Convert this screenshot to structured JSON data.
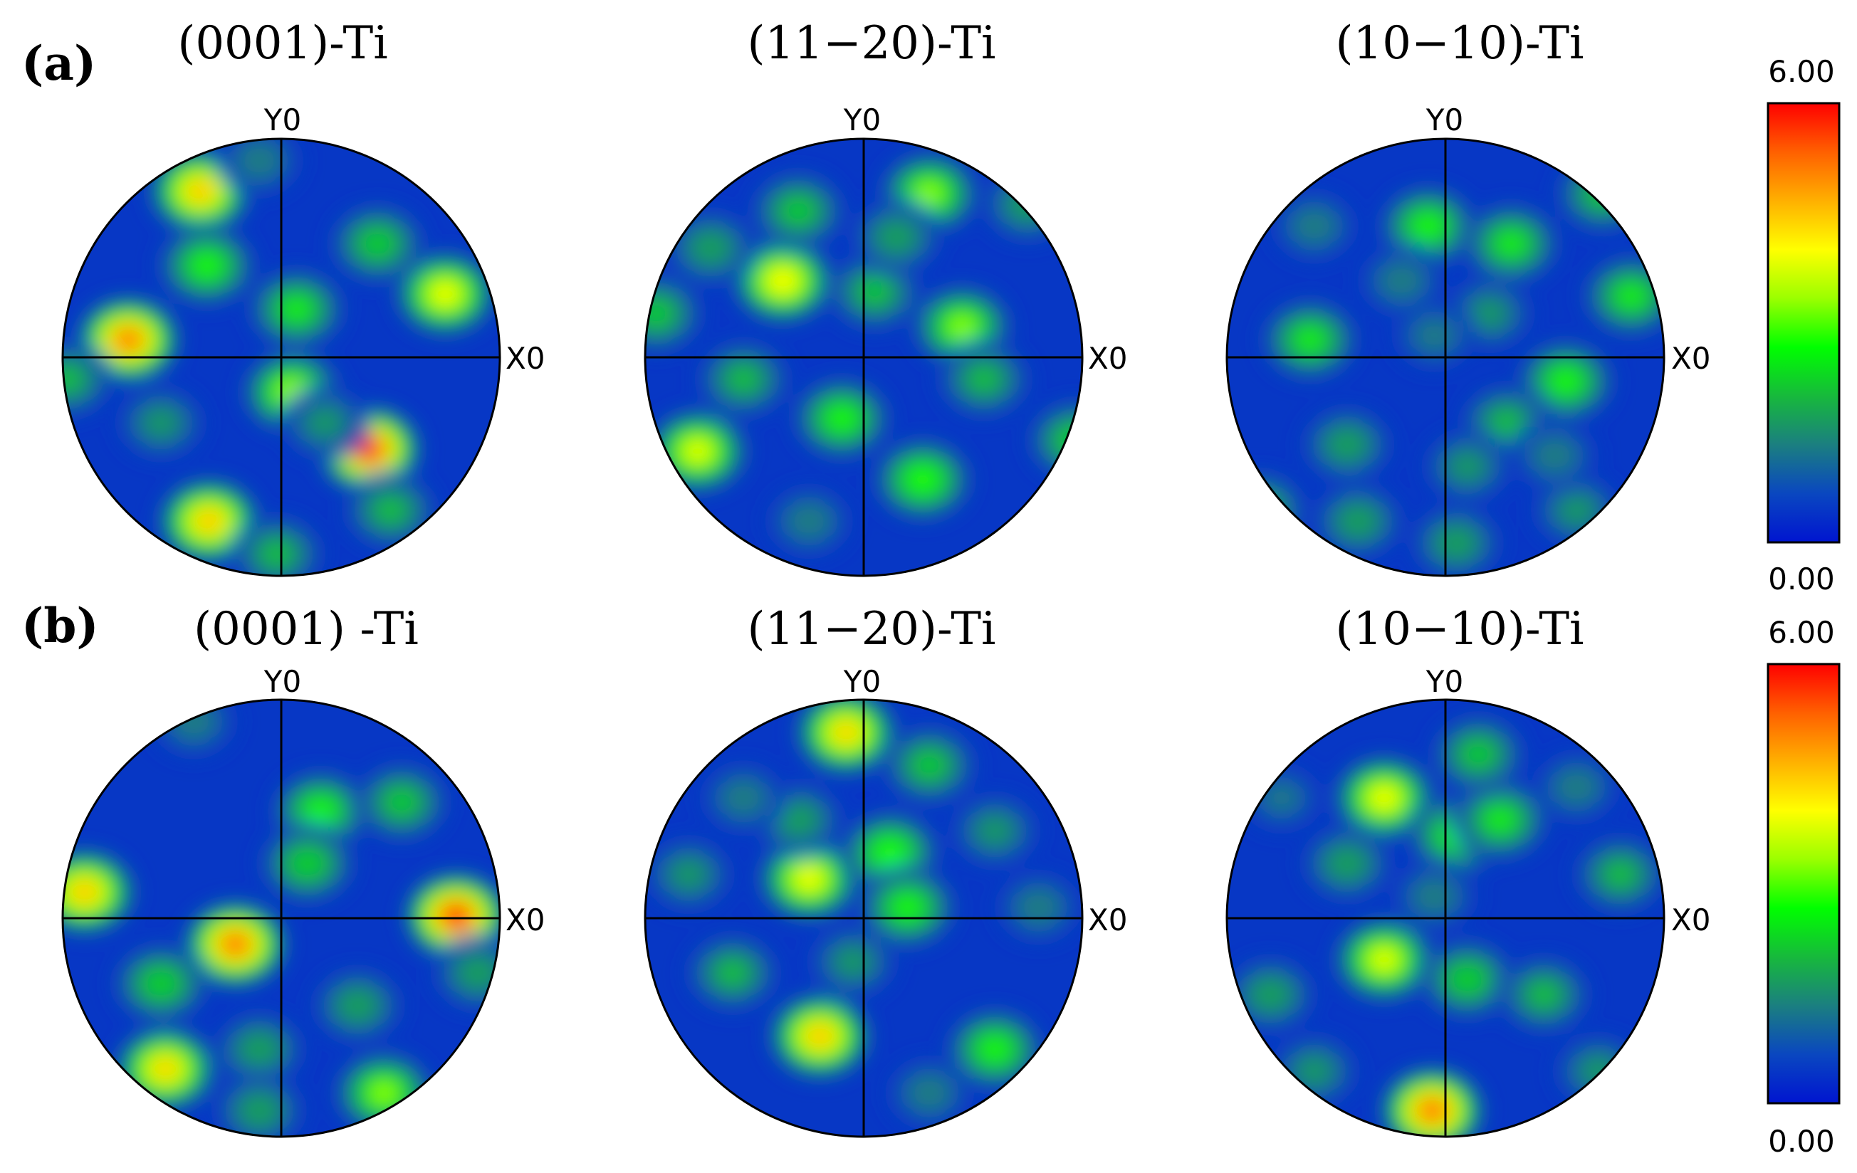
{
  "chart_data": {
    "type": "pole_figure_grid",
    "rows": [
      {
        "label": "(a)",
        "colorbar": {
          "max_label": "6.00",
          "min_label": "0.00",
          "min": 0,
          "max": 6
        },
        "figures": [
          {
            "title": "(0001)-Ti",
            "x_axis_label": "X0",
            "y_axis_label": "Y0",
            "peaks": [
              {
                "x": -0.37,
                "y": 0.76,
                "intensity": 4.8
              },
              {
                "x": -0.7,
                "y": 0.08,
                "intensity": 5.5
              },
              {
                "x": 0.75,
                "y": 0.29,
                "intensity": 4.2
              },
              {
                "x": 0.4,
                "y": -0.42,
                "intensity": 6.0
              },
              {
                "x": -0.33,
                "y": -0.75,
                "intensity": 4.8
              },
              {
                "x": 0.05,
                "y": -0.16,
                "intensity": 3.6
              },
              {
                "x": -0.34,
                "y": 0.42,
                "intensity": 3.0
              },
              {
                "x": 0.07,
                "y": 0.22,
                "intensity": 2.8
              },
              {
                "x": 0.44,
                "y": 0.52,
                "intensity": 2.5
              },
              {
                "x": -0.02,
                "y": -0.9,
                "intensity": 2.2
              },
              {
                "x": 0.5,
                "y": -0.7,
                "intensity": 2.2
              },
              {
                "x": -0.55,
                "y": -0.3,
                "intensity": 1.8
              },
              {
                "x": -0.98,
                "y": -0.1,
                "intensity": 2.2
              },
              {
                "x": -0.1,
                "y": 0.9,
                "intensity": 1.6
              },
              {
                "x": 0.2,
                "y": -0.3,
                "intensity": 1.8
              }
            ]
          },
          {
            "title": "(11−20)-Ti",
            "x_axis_label": "X0",
            "y_axis_label": "Y0",
            "peaks": [
              {
                "x": -0.37,
                "y": 0.35,
                "intensity": 4.4
              },
              {
                "x": -0.76,
                "y": -0.43,
                "intensity": 4.0
              },
              {
                "x": 0.45,
                "y": 0.14,
                "intensity": 3.4
              },
              {
                "x": 0.27,
                "y": -0.56,
                "intensity": 3.2
              },
              {
                "x": 0.3,
                "y": 0.75,
                "intensity": 3.4
              },
              {
                "x": -0.1,
                "y": -0.28,
                "intensity": 3.0
              },
              {
                "x": -0.3,
                "y": 0.67,
                "intensity": 2.4
              },
              {
                "x": -0.7,
                "y": 0.5,
                "intensity": 2.0
              },
              {
                "x": 0.75,
                "y": 0.7,
                "intensity": 2.0
              },
              {
                "x": -0.55,
                "y": -0.1,
                "intensity": 2.2
              },
              {
                "x": 0.97,
                "y": -0.38,
                "intensity": 2.6
              },
              {
                "x": -0.95,
                "y": 0.2,
                "intensity": 2.4
              },
              {
                "x": 0.05,
                "y": 0.3,
                "intensity": 2.3
              },
              {
                "x": 0.55,
                "y": -0.1,
                "intensity": 2.2
              },
              {
                "x": 0.15,
                "y": 0.55,
                "intensity": 2.0
              },
              {
                "x": -0.25,
                "y": -0.75,
                "intensity": 1.6
              }
            ]
          },
          {
            "title": "(10−10)-Ti",
            "x_axis_label": "X0",
            "y_axis_label": "Y0",
            "peaks": [
              {
                "x": -0.08,
                "y": 0.6,
                "intensity": 3.0
              },
              {
                "x": 0.3,
                "y": 0.52,
                "intensity": 2.8
              },
              {
                "x": 0.55,
                "y": -0.11,
                "intensity": 3.0
              },
              {
                "x": 0.85,
                "y": 0.28,
                "intensity": 2.8
              },
              {
                "x": -0.62,
                "y": 0.08,
                "intensity": 2.8
              },
              {
                "x": 0.72,
                "y": 0.75,
                "intensity": 2.4
              },
              {
                "x": -0.45,
                "y": -0.4,
                "intensity": 2.0
              },
              {
                "x": 0.28,
                "y": -0.3,
                "intensity": 2.2
              },
              {
                "x": -0.4,
                "y": -0.75,
                "intensity": 2.0
              },
              {
                "x": 0.05,
                "y": -0.85,
                "intensity": 2.0
              },
              {
                "x": 0.6,
                "y": -0.7,
                "intensity": 1.8
              },
              {
                "x": -0.85,
                "y": -0.7,
                "intensity": 2.3
              },
              {
                "x": 0.2,
                "y": 0.2,
                "intensity": 1.8
              },
              {
                "x": -0.2,
                "y": 0.35,
                "intensity": 1.6
              },
              {
                "x": -0.6,
                "y": 0.6,
                "intensity": 1.6
              },
              {
                "x": 0.1,
                "y": -0.5,
                "intensity": 1.8
              },
              {
                "x": 0.5,
                "y": -0.45,
                "intensity": 1.6
              },
              {
                "x": -0.05,
                "y": 0.1,
                "intensity": 1.5
              }
            ]
          }
        ]
      },
      {
        "label": "(b)",
        "colorbar": {
          "max_label": "6.00",
          "min_label": "0.00",
          "min": 0,
          "max": 6
        },
        "figures": [
          {
            "title": "(0001) -Ti",
            "x_axis_label": "X0",
            "y_axis_label": "Y0",
            "peaks": [
              {
                "x": 0.8,
                "y": 0.01,
                "intensity": 6.0
              },
              {
                "x": -0.21,
                "y": -0.12,
                "intensity": 5.6
              },
              {
                "x": -0.9,
                "y": 0.12,
                "intensity": 4.8
              },
              {
                "x": -0.53,
                "y": -0.69,
                "intensity": 4.6
              },
              {
                "x": 0.47,
                "y": -0.8,
                "intensity": 3.4
              },
              {
                "x": 0.18,
                "y": 0.49,
                "intensity": 3.0
              },
              {
                "x": 0.12,
                "y": 0.25,
                "intensity": 2.6
              },
              {
                "x": -0.55,
                "y": -0.3,
                "intensity": 2.6
              },
              {
                "x": 0.55,
                "y": 0.53,
                "intensity": 2.4
              },
              {
                "x": 0.35,
                "y": -0.4,
                "intensity": 2.0
              },
              {
                "x": -0.1,
                "y": -0.6,
                "intensity": 2.0
              },
              {
                "x": -0.1,
                "y": -0.88,
                "intensity": 2.0
              },
              {
                "x": -0.4,
                "y": 0.9,
                "intensity": 1.6
              },
              {
                "x": 0.9,
                "y": -0.25,
                "intensity": 2.0
              }
            ]
          },
          {
            "title": "(11−20)-Ti",
            "x_axis_label": "X0",
            "y_axis_label": "Y0",
            "peaks": [
              {
                "x": -0.08,
                "y": 0.85,
                "intensity": 4.6
              },
              {
                "x": -0.25,
                "y": 0.18,
                "intensity": 4.2
              },
              {
                "x": -0.2,
                "y": -0.54,
                "intensity": 4.8
              },
              {
                "x": 0.12,
                "y": 0.3,
                "intensity": 3.2
              },
              {
                "x": 0.2,
                "y": 0.05,
                "intensity": 3.0
              },
              {
                "x": 0.6,
                "y": -0.6,
                "intensity": 3.0
              },
              {
                "x": 0.3,
                "y": 0.7,
                "intensity": 2.4
              },
              {
                "x": -0.6,
                "y": -0.25,
                "intensity": 2.2
              },
              {
                "x": -0.3,
                "y": 0.45,
                "intensity": 2.0
              },
              {
                "x": 0.6,
                "y": 0.4,
                "intensity": 1.8
              },
              {
                "x": 0.8,
                "y": 0.05,
                "intensity": 1.6
              },
              {
                "x": -0.8,
                "y": 0.2,
                "intensity": 1.8
              },
              {
                "x": -0.05,
                "y": -0.2,
                "intensity": 1.8
              },
              {
                "x": 0.3,
                "y": -0.8,
                "intensity": 1.6
              },
              {
                "x": -0.55,
                "y": 0.55,
                "intensity": 1.6
              }
            ]
          },
          {
            "title": "(10−10)-Ti",
            "x_axis_label": "X0",
            "y_axis_label": "Y0",
            "peaks": [
              {
                "x": -0.06,
                "y": -0.88,
                "intensity": 5.6
              },
              {
                "x": -0.28,
                "y": 0.55,
                "intensity": 4.2
              },
              {
                "x": -0.28,
                "y": -0.19,
                "intensity": 4.0
              },
              {
                "x": 0.05,
                "y": 0.38,
                "intensity": 3.0
              },
              {
                "x": 0.25,
                "y": 0.45,
                "intensity": 2.8
              },
              {
                "x": 0.1,
                "y": -0.28,
                "intensity": 2.6
              },
              {
                "x": 0.15,
                "y": 0.75,
                "intensity": 2.4
              },
              {
                "x": 0.45,
                "y": -0.35,
                "intensity": 2.2
              },
              {
                "x": 0.8,
                "y": 0.2,
                "intensity": 2.2
              },
              {
                "x": -0.8,
                "y": -0.35,
                "intensity": 2.0
              },
              {
                "x": -0.45,
                "y": 0.25,
                "intensity": 2.0
              },
              {
                "x": -0.6,
                "y": -0.7,
                "intensity": 1.8
              },
              {
                "x": 0.7,
                "y": -0.7,
                "intensity": 1.8
              },
              {
                "x": 0.6,
                "y": 0.6,
                "intensity": 1.6
              },
              {
                "x": -0.05,
                "y": 0.1,
                "intensity": 1.6
              },
              {
                "x": -0.75,
                "y": 0.55,
                "intensity": 1.4
              }
            ]
          }
        ]
      }
    ],
    "colormap": [
      "#0015d0",
      "#0a47c0",
      "#1b7f80",
      "#17b93c",
      "#00ff00",
      "#9bff00",
      "#ffff00",
      "#ffb000",
      "#ff6000",
      "#ff0000"
    ],
    "background_intensity": 0.45,
    "legend": "colorbar-right",
    "grid": false
  }
}
